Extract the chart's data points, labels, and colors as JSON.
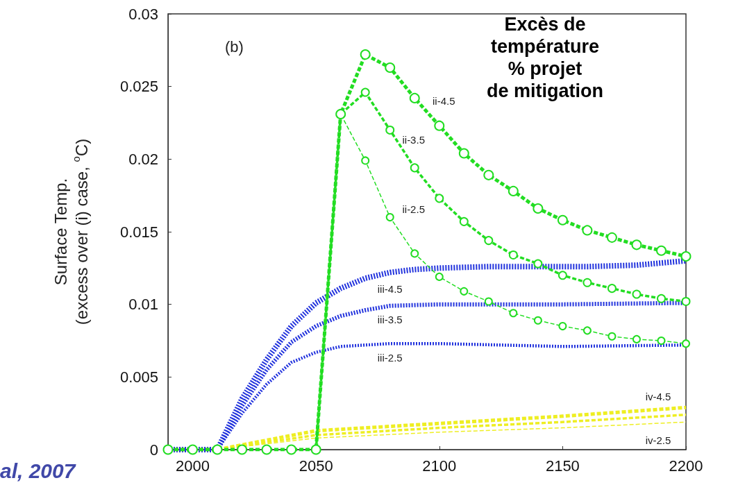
{
  "chart_data": {
    "type": "line",
    "title": "Excès de\ntempérature\n% projet\nde mitigation",
    "ylabel": "Surface Temp.\n(excess over (i) case, $^{o}$C)",
    "xlim": [
      1990,
      2200
    ],
    "xticks": [
      2000,
      2050,
      2100,
      2150,
      2200
    ],
    "ylim": [
      0,
      0.03
    ],
    "yticks": [
      0,
      0.005,
      0.01,
      0.015,
      0.02,
      0.025,
      0.03
    ],
    "grid": false,
    "series": [
      {
        "name": "ii-4.5",
        "color": "#22dd22",
        "marker": "circle",
        "line_style": "dashed",
        "x": [
          1990,
          2000,
          2010,
          2020,
          2030,
          2040,
          2050,
          2060,
          2070,
          2080,
          2090,
          2100,
          2110,
          2120,
          2130,
          2140,
          2150,
          2160,
          2170,
          2180,
          2190,
          2200
        ],
        "values": [
          0,
          0,
          0,
          0,
          0,
          0,
          0,
          0.0231,
          0.0272,
          0.0263,
          0.0242,
          0.0223,
          0.0204,
          0.0189,
          0.0178,
          0.0166,
          0.0158,
          0.0151,
          0.0146,
          0.0141,
          0.0137,
          0.0133
        ]
      },
      {
        "name": "ii-3.5",
        "color": "#22dd22",
        "marker": "circle",
        "line_style": "dashed",
        "x": [
          2050,
          2060,
          2070,
          2080,
          2090,
          2100,
          2110,
          2120,
          2130,
          2140,
          2150,
          2160,
          2170,
          2180,
          2190,
          2200
        ],
        "values": [
          0,
          0.0231,
          0.0246,
          0.022,
          0.0194,
          0.0173,
          0.0157,
          0.0144,
          0.0134,
          0.0128,
          0.012,
          0.0115,
          0.0111,
          0.0107,
          0.0104,
          0.0102
        ]
      },
      {
        "name": "ii-2.5",
        "color": "#22dd22",
        "marker": "circle",
        "line_style": "dashed",
        "x": [
          2050,
          2060,
          2070,
          2080,
          2090,
          2100,
          2110,
          2120,
          2130,
          2140,
          2150,
          2160,
          2170,
          2180,
          2190,
          2200
        ],
        "values": [
          0,
          0.0231,
          0.0199,
          0.016,
          0.0135,
          0.0119,
          0.0109,
          0.0102,
          0.0094,
          0.0089,
          0.0085,
          0.0082,
          0.0078,
          0.0076,
          0.0075,
          0.0073
        ]
      },
      {
        "name": "iii-4.5",
        "color": "#2233dd",
        "marker": "none",
        "line_style": "dotted",
        "x": [
          1990,
          2010,
          2020,
          2030,
          2040,
          2050,
          2060,
          2070,
          2080,
          2090,
          2100,
          2120,
          2140,
          2160,
          2180,
          2200
        ],
        "values": [
          0,
          0,
          0.0035,
          0.0062,
          0.0085,
          0.0101,
          0.0111,
          0.0118,
          0.0122,
          0.0124,
          0.0125,
          0.0126,
          0.0126,
          0.0126,
          0.0127,
          0.013
        ]
      },
      {
        "name": "iii-3.5",
        "color": "#2233dd",
        "marker": "none",
        "line_style": "dotted",
        "x": [
          1990,
          2010,
          2020,
          2030,
          2040,
          2050,
          2060,
          2070,
          2080,
          2100,
          2150,
          2200
        ],
        "values": [
          0,
          0,
          0.003,
          0.0055,
          0.0074,
          0.0085,
          0.0092,
          0.0096,
          0.0099,
          0.01,
          0.01,
          0.0101
        ]
      },
      {
        "name": "iii-2.5",
        "color": "#2233dd",
        "marker": "none",
        "line_style": "dotted",
        "x": [
          1990,
          2010,
          2020,
          2030,
          2040,
          2050,
          2060,
          2080,
          2100,
          2150,
          2200
        ],
        "values": [
          0,
          0,
          0.0025,
          0.0045,
          0.006,
          0.0067,
          0.0071,
          0.0073,
          0.0073,
          0.0071,
          0.0072
        ]
      },
      {
        "name": "iv-4.5",
        "color": "#eeee22",
        "marker": "none",
        "line_style": "dashed",
        "x": [
          1990,
          2010,
          2050,
          2100,
          2150,
          2200
        ],
        "values": [
          0,
          0,
          0.0013,
          0.0018,
          0.0023,
          0.0029
        ]
      },
      {
        "color": "#eeee22",
        "marker": "none",
        "line_style": "dashed",
        "x": [
          1990,
          2010,
          2050,
          2100,
          2150,
          2200
        ],
        "values": [
          0,
          0,
          0.001,
          0.0015,
          0.0019,
          0.0024
        ]
      },
      {
        "name": "iv-2.5",
        "color": "#eeee22",
        "marker": "none",
        "line_style": "dashed",
        "x": [
          1990,
          2010,
          2050,
          2100,
          2150,
          2200
        ],
        "values": [
          0,
          0,
          0.0008,
          0.0012,
          0.0015,
          0.0019
        ]
      }
    ],
    "annotations": [
      "(b)",
      "al, 2007"
    ]
  }
}
